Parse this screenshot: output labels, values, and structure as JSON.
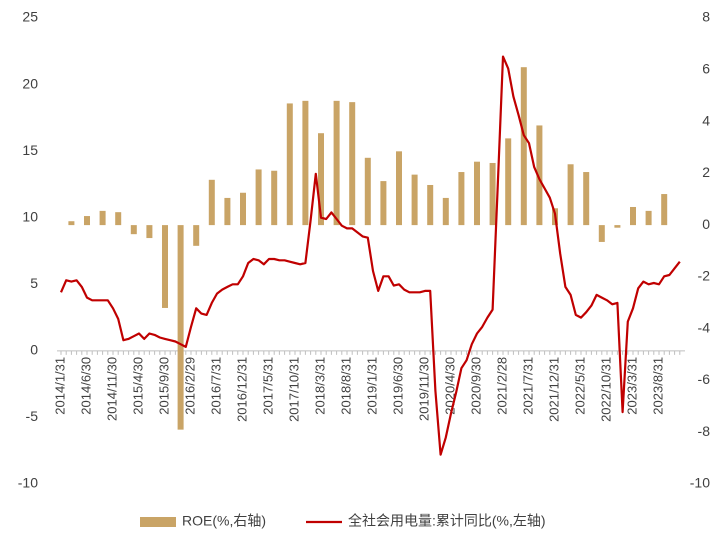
{
  "chart_data": {
    "type": "combo",
    "categories": [
      "2014/1/31",
      null,
      null,
      null,
      null,
      "2014/6/30",
      null,
      null,
      null,
      null,
      "2014/11/30",
      null,
      null,
      null,
      null,
      "2015/4/30",
      null,
      null,
      null,
      null,
      "2015/9/30",
      null,
      null,
      null,
      null,
      "2016/2/29",
      null,
      null,
      null,
      null,
      "2016/7/31",
      null,
      null,
      null,
      null,
      "2016/12/31",
      null,
      null,
      null,
      null,
      "2017/5/31",
      null,
      null,
      null,
      null,
      "2017/10/31",
      null,
      null,
      null,
      null,
      "2018/3/31",
      null,
      null,
      null,
      null,
      "2018/8/31",
      null,
      null,
      null,
      null,
      "2019/1/31",
      null,
      null,
      null,
      null,
      "2019/6/30",
      null,
      null,
      null,
      null,
      "2019/11/30",
      null,
      null,
      null,
      null,
      "2020/4/30",
      null,
      null,
      null,
      null,
      "2020/9/30",
      null,
      null,
      null,
      null,
      "2021/2/28",
      null,
      null,
      null,
      null,
      "2021/7/31",
      null,
      null,
      null,
      null,
      "2021/12/31",
      null,
      null,
      null,
      null,
      "2022/5/31",
      null,
      null,
      null,
      null,
      "2022/10/31",
      null,
      null,
      null,
      null,
      "2023/3/31",
      null,
      null,
      null,
      null,
      "2023/8/31",
      null,
      null,
      null,
      null
    ],
    "series": [
      {
        "name": "ROE(%,右轴)",
        "type": "bar",
        "axis": "y2",
        "color": "#c9a466",
        "values": [
          null,
          null,
          0.15,
          null,
          null,
          0.35,
          null,
          null,
          0.55,
          null,
          null,
          0.5,
          null,
          null,
          -0.35,
          null,
          null,
          -0.5,
          null,
          null,
          -3.2,
          null,
          null,
          -7.9,
          null,
          null,
          -0.8,
          null,
          null,
          1.75,
          null,
          null,
          1.05,
          null,
          null,
          1.25,
          null,
          null,
          2.15,
          null,
          null,
          2.1,
          null,
          null,
          4.7,
          null,
          null,
          4.8,
          null,
          null,
          3.55,
          null,
          null,
          4.8,
          null,
          null,
          4.75,
          null,
          null,
          2.6,
          null,
          null,
          1.7,
          null,
          null,
          2.85,
          null,
          null,
          1.95,
          null,
          null,
          1.55,
          null,
          null,
          1.05,
          null,
          null,
          2.05,
          null,
          null,
          2.45,
          null,
          null,
          2.4,
          null,
          null,
          3.35,
          null,
          null,
          6.1,
          null,
          null,
          3.85,
          null,
          null,
          0.65,
          null,
          null,
          2.35,
          null,
          null,
          2.05,
          null,
          null,
          -0.65,
          null,
          null,
          -0.1,
          null,
          null,
          0.7,
          null,
          null,
          0.55,
          null,
          null,
          1.2,
          null,
          null,
          null
        ]
      },
      {
        "name": "全社会用电量:累计同比(%,左轴)",
        "type": "line",
        "axis": "y",
        "color": "#c00000",
        "values": [
          4.4,
          5.3,
          5.2,
          5.3,
          4.8,
          4.0,
          3.8,
          3.8,
          3.8,
          3.8,
          3.2,
          2.4,
          0.8,
          0.9,
          1.1,
          1.3,
          0.9,
          1.3,
          1.2,
          1.0,
          0.9,
          0.8,
          0.7,
          0.5,
          0.3,
          1.8,
          3.2,
          2.8,
          2.7,
          3.6,
          4.3,
          4.6,
          4.8,
          5.0,
          5.0,
          5.6,
          6.6,
          6.9,
          6.8,
          6.5,
          6.9,
          6.9,
          6.8,
          6.8,
          6.7,
          6.6,
          6.5,
          6.6,
          9.8,
          13.3,
          10.0,
          9.9,
          10.4,
          9.9,
          9.4,
          9.2,
          9.2,
          8.9,
          8.6,
          8.5,
          6.0,
          4.5,
          5.6,
          5.6,
          4.9,
          5.0,
          4.6,
          4.4,
          4.4,
          4.4,
          4.5,
          4.5,
          -3.0,
          -7.8,
          -6.5,
          -4.7,
          -3.1,
          -1.3,
          -0.7,
          0.5,
          1.3,
          1.8,
          2.5,
          3.1,
          12.5,
          22.1,
          21.2,
          19.1,
          17.7,
          16.2,
          15.6,
          13.8,
          12.9,
          12.2,
          11.5,
          10.3,
          7.3,
          4.8,
          4.2,
          2.7,
          2.5,
          2.9,
          3.4,
          4.2,
          4.0,
          3.8,
          3.5,
          3.6,
          -4.6,
          2.2,
          3.2,
          4.7,
          5.2,
          5.0,
          5.1,
          5.0,
          5.6,
          5.7,
          6.2,
          6.7
        ]
      }
    ],
    "ylim": [
      -10,
      25
    ],
    "yticks": [
      -10,
      -5,
      0,
      5,
      10,
      15,
      20,
      25
    ],
    "y2lim": [
      -10,
      8
    ],
    "y2ticks": [
      -10,
      -8,
      -6,
      -4,
      -2,
      0,
      2,
      4,
      6,
      8
    ],
    "grid": false,
    "legend": "bottom"
  }
}
